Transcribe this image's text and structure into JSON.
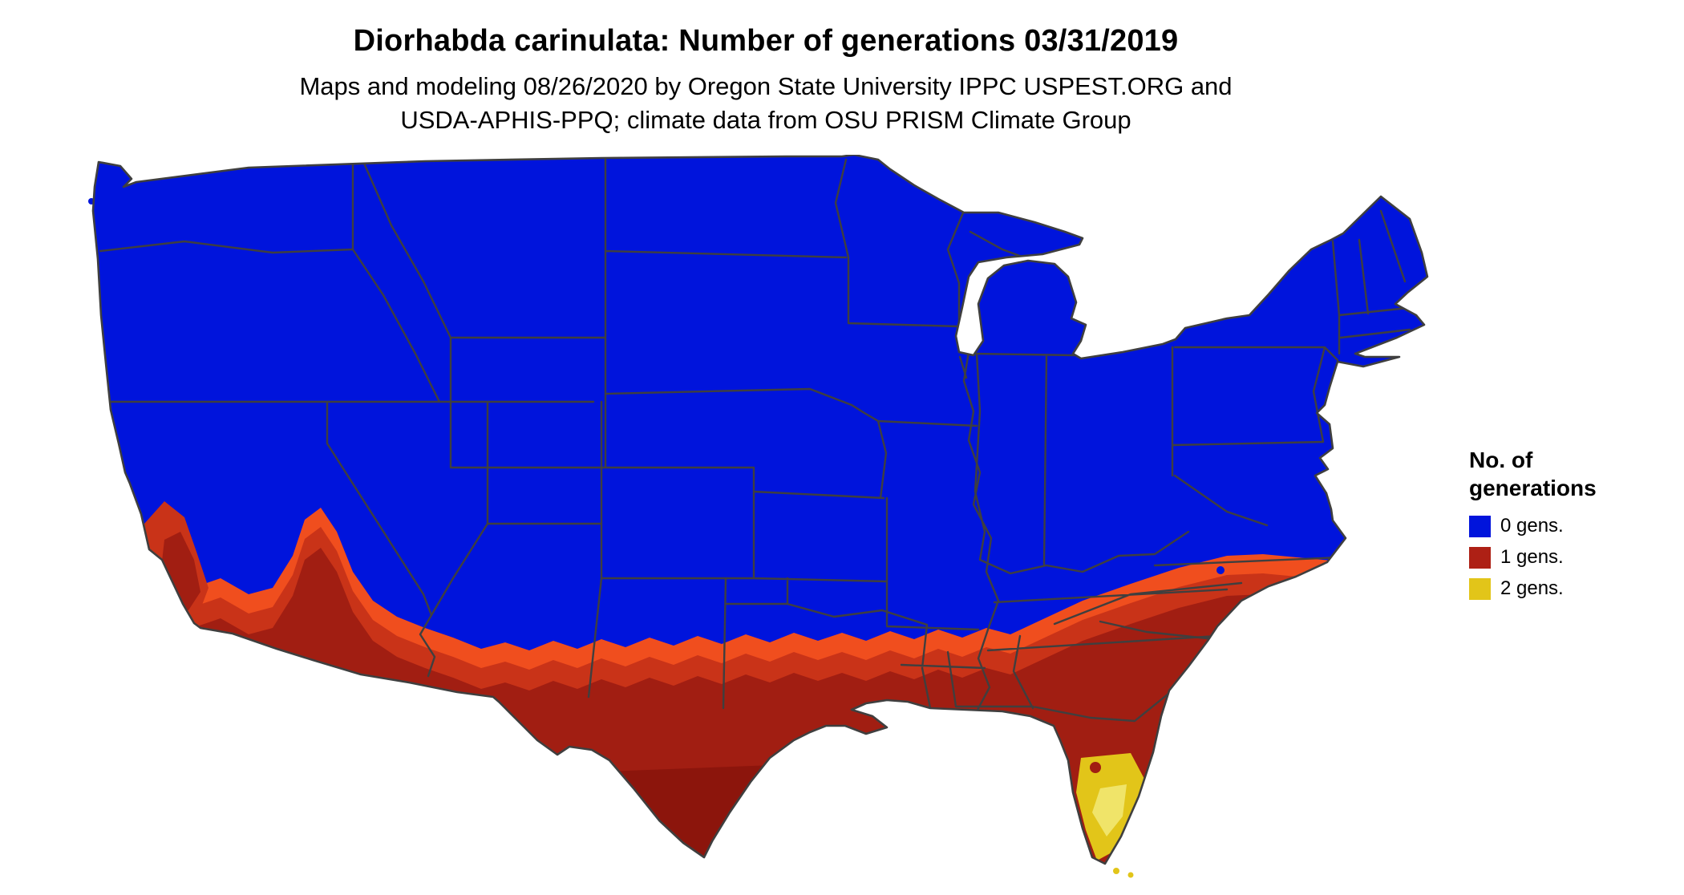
{
  "title": "Diorhabda carinulata: Number of generations 03/31/2019",
  "subtitle_line1": "Maps and modeling 08/26/2020 by Oregon State University IPPC USPEST.ORG and",
  "subtitle_line2": "USDA-APHIS-PPQ; climate data from OSU PRISM Climate Group",
  "legend": {
    "title_line1": "No. of",
    "title_line2": "generations",
    "items": [
      {
        "label": "0 gens.",
        "color": "#0014DC"
      },
      {
        "label": "1 gens.",
        "color": "#AE2015"
      },
      {
        "label": "2 gens.",
        "color": "#E2C519"
      }
    ]
  },
  "map": {
    "name": "contiguous-united-states",
    "classes": [
      {
        "label": "0 gens.",
        "color": "#0014DC",
        "coverage": "northern, western and central US"
      },
      {
        "label": "1 gens.",
        "color": "#AE2015",
        "coverage": "southern band: southern California, Arizona, New Mexico, Texas, Gulf states, southeastern coastal plain, most of Florida"
      },
      {
        "label": "2 gens.",
        "color": "#E2C519",
        "coverage": "southern Florida peninsula and Keys"
      }
    ],
    "colors": {
      "gens0": "#0014DC",
      "band_orange": "#F04E1E",
      "band_mid": "#C93318",
      "band_dark": "#A11E12",
      "band_deep": "#8C150C",
      "gens2": "#E2C519",
      "gens2_light": "#F0E469",
      "border": "#3F3F3F"
    }
  }
}
